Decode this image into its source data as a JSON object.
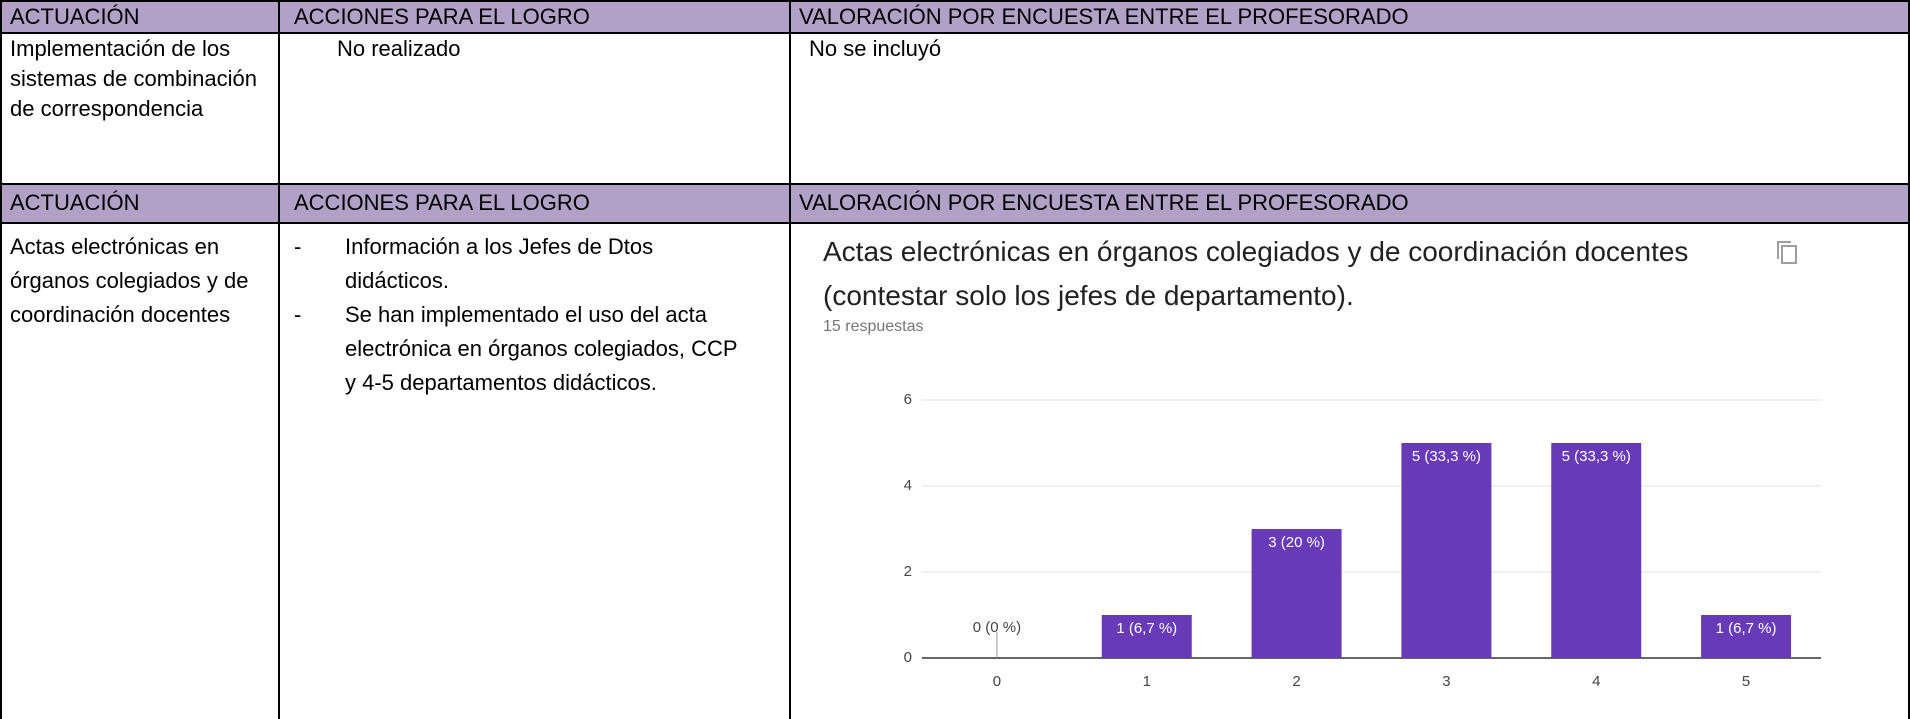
{
  "table": {
    "sections": [
      {
        "header": [
          "ACTUACIÓN",
          "ACCIONES PARA EL LOGRO",
          "VALORACIÓN POR ENCUESTA ENTRE EL PROFESORADO"
        ],
        "cells": [
          "Implementación de los sistemas  de combinación de correspondencia",
          "No realizado",
          "No se incluyó"
        ]
      },
      {
        "header": [
          "ACTUACIÓN",
          "ACCIONES PARA EL LOGRO",
          "VALORACIÓN POR ENCUESTA ENTRE EL PROFESORADO"
        ],
        "cells": [
          "Actas  electrónicas en  órganos colegiados y de coordinación docentes",
          [
            "Información a los Jefes de Dtos didácticos.",
            "Se han implementado  el uso del acta electrónica  en órganos colegiados,  CCP y  4-5 departamentos  didácticos."
          ]
        ]
      }
    ]
  },
  "chart_data": {
    "type": "bar",
    "title": "Actas electrónicas en órganos colegiados y de coordinación docentes (contestar solo los jefes de departamento).",
    "subtitle": "15 respuestas",
    "categories": [
      "0",
      "1",
      "2",
      "3",
      "4",
      "5"
    ],
    "values": [
      0,
      1,
      3,
      5,
      5,
      1
    ],
    "value_labels": [
      "0 (0 %)",
      "1 (6,7 %)",
      "3 (20 %)",
      "5 (33,3 %)",
      "5 (33,3 %)",
      "1 (6,7 %)"
    ],
    "color": "#673ab7",
    "ylim": [
      0,
      6
    ],
    "yticks": [
      0,
      2,
      4,
      6
    ],
    "grid": true
  }
}
